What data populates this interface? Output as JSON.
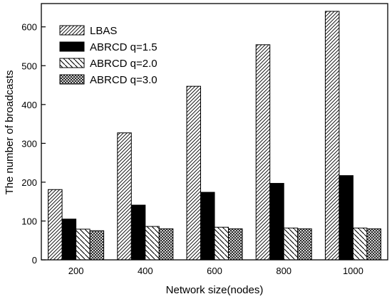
{
  "chart_data": {
    "type": "bar",
    "title": "",
    "xlabel": "Network size(nodes)",
    "ylabel": "The number of broadcasts",
    "categories": [
      "200",
      "400",
      "600",
      "800",
      "1000"
    ],
    "ylim": [
      0,
      660
    ],
    "yticks": [
      0,
      100,
      200,
      300,
      400,
      500,
      600
    ],
    "grid": false,
    "legend_position": "top-left",
    "series": [
      {
        "name": "LBAS",
        "pattern": "diagonal-up",
        "values": [
          181,
          327,
          447,
          554,
          640
        ]
      },
      {
        "name": "ABRCD q=1.5",
        "pattern": "solid-black",
        "values": [
          105,
          141,
          174,
          197,
          217
        ]
      },
      {
        "name": "ABRCD q=2.0",
        "pattern": "diagonal-down",
        "values": [
          79,
          86,
          84,
          82,
          82
        ]
      },
      {
        "name": "ABRCD q=3.0",
        "pattern": "crosshatch",
        "values": [
          75,
          80,
          80,
          80,
          80
        ]
      }
    ]
  }
}
